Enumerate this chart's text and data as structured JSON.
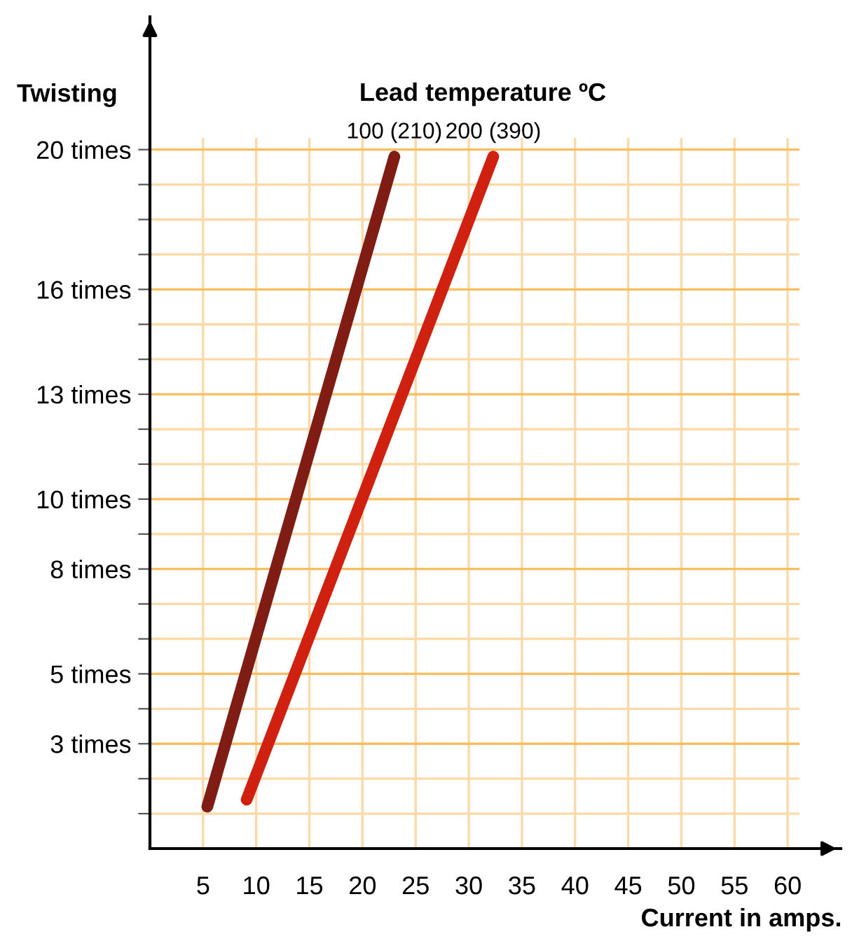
{
  "chart_data": {
    "type": "line",
    "legend_title": "Lead temperature ºC",
    "xlabel": "Current in amps.",
    "ylabel": "Twisting",
    "series": [
      {
        "name": "100 (210)",
        "color": "#7f1d14",
        "x": [
          5.4,
          23
        ],
        "values": [
          1.2,
          19.8
        ]
      },
      {
        "name": "200 (390)",
        "color": "#d02010",
        "x": [
          9.1,
          32.3
        ],
        "values": [
          1.4,
          19.8
        ]
      }
    ],
    "xlim": [
      0,
      65
    ],
    "ylim": [
      0,
      23.8
    ],
    "xticks": [
      5,
      10,
      15,
      20,
      25,
      30,
      35,
      40,
      45,
      50,
      55,
      60
    ],
    "yticks": [
      {
        "value": 1,
        "label": null
      },
      {
        "value": 2,
        "label": null
      },
      {
        "value": 3,
        "label": "3 times"
      },
      {
        "value": 4,
        "label": null
      },
      {
        "value": 5,
        "label": "5 times"
      },
      {
        "value": 6,
        "label": null
      },
      {
        "value": 7,
        "label": null
      },
      {
        "value": 8,
        "label": "8 times"
      },
      {
        "value": 9,
        "label": null
      },
      {
        "value": 10,
        "label": "10 times"
      },
      {
        "value": 11,
        "label": null
      },
      {
        "value": 12,
        "label": null
      },
      {
        "value": 13,
        "label": "13 times"
      },
      {
        "value": 14,
        "label": null
      },
      {
        "value": 15,
        "label": null
      },
      {
        "value": 16,
        "label": "16 times"
      },
      {
        "value": 17,
        "label": null
      },
      {
        "value": 18,
        "label": null
      },
      {
        "value": 19,
        "label": null
      },
      {
        "value": 20,
        "label": "20 times"
      }
    ],
    "grid": true,
    "legend": false,
    "marker": "none",
    "line_style": "solid"
  }
}
